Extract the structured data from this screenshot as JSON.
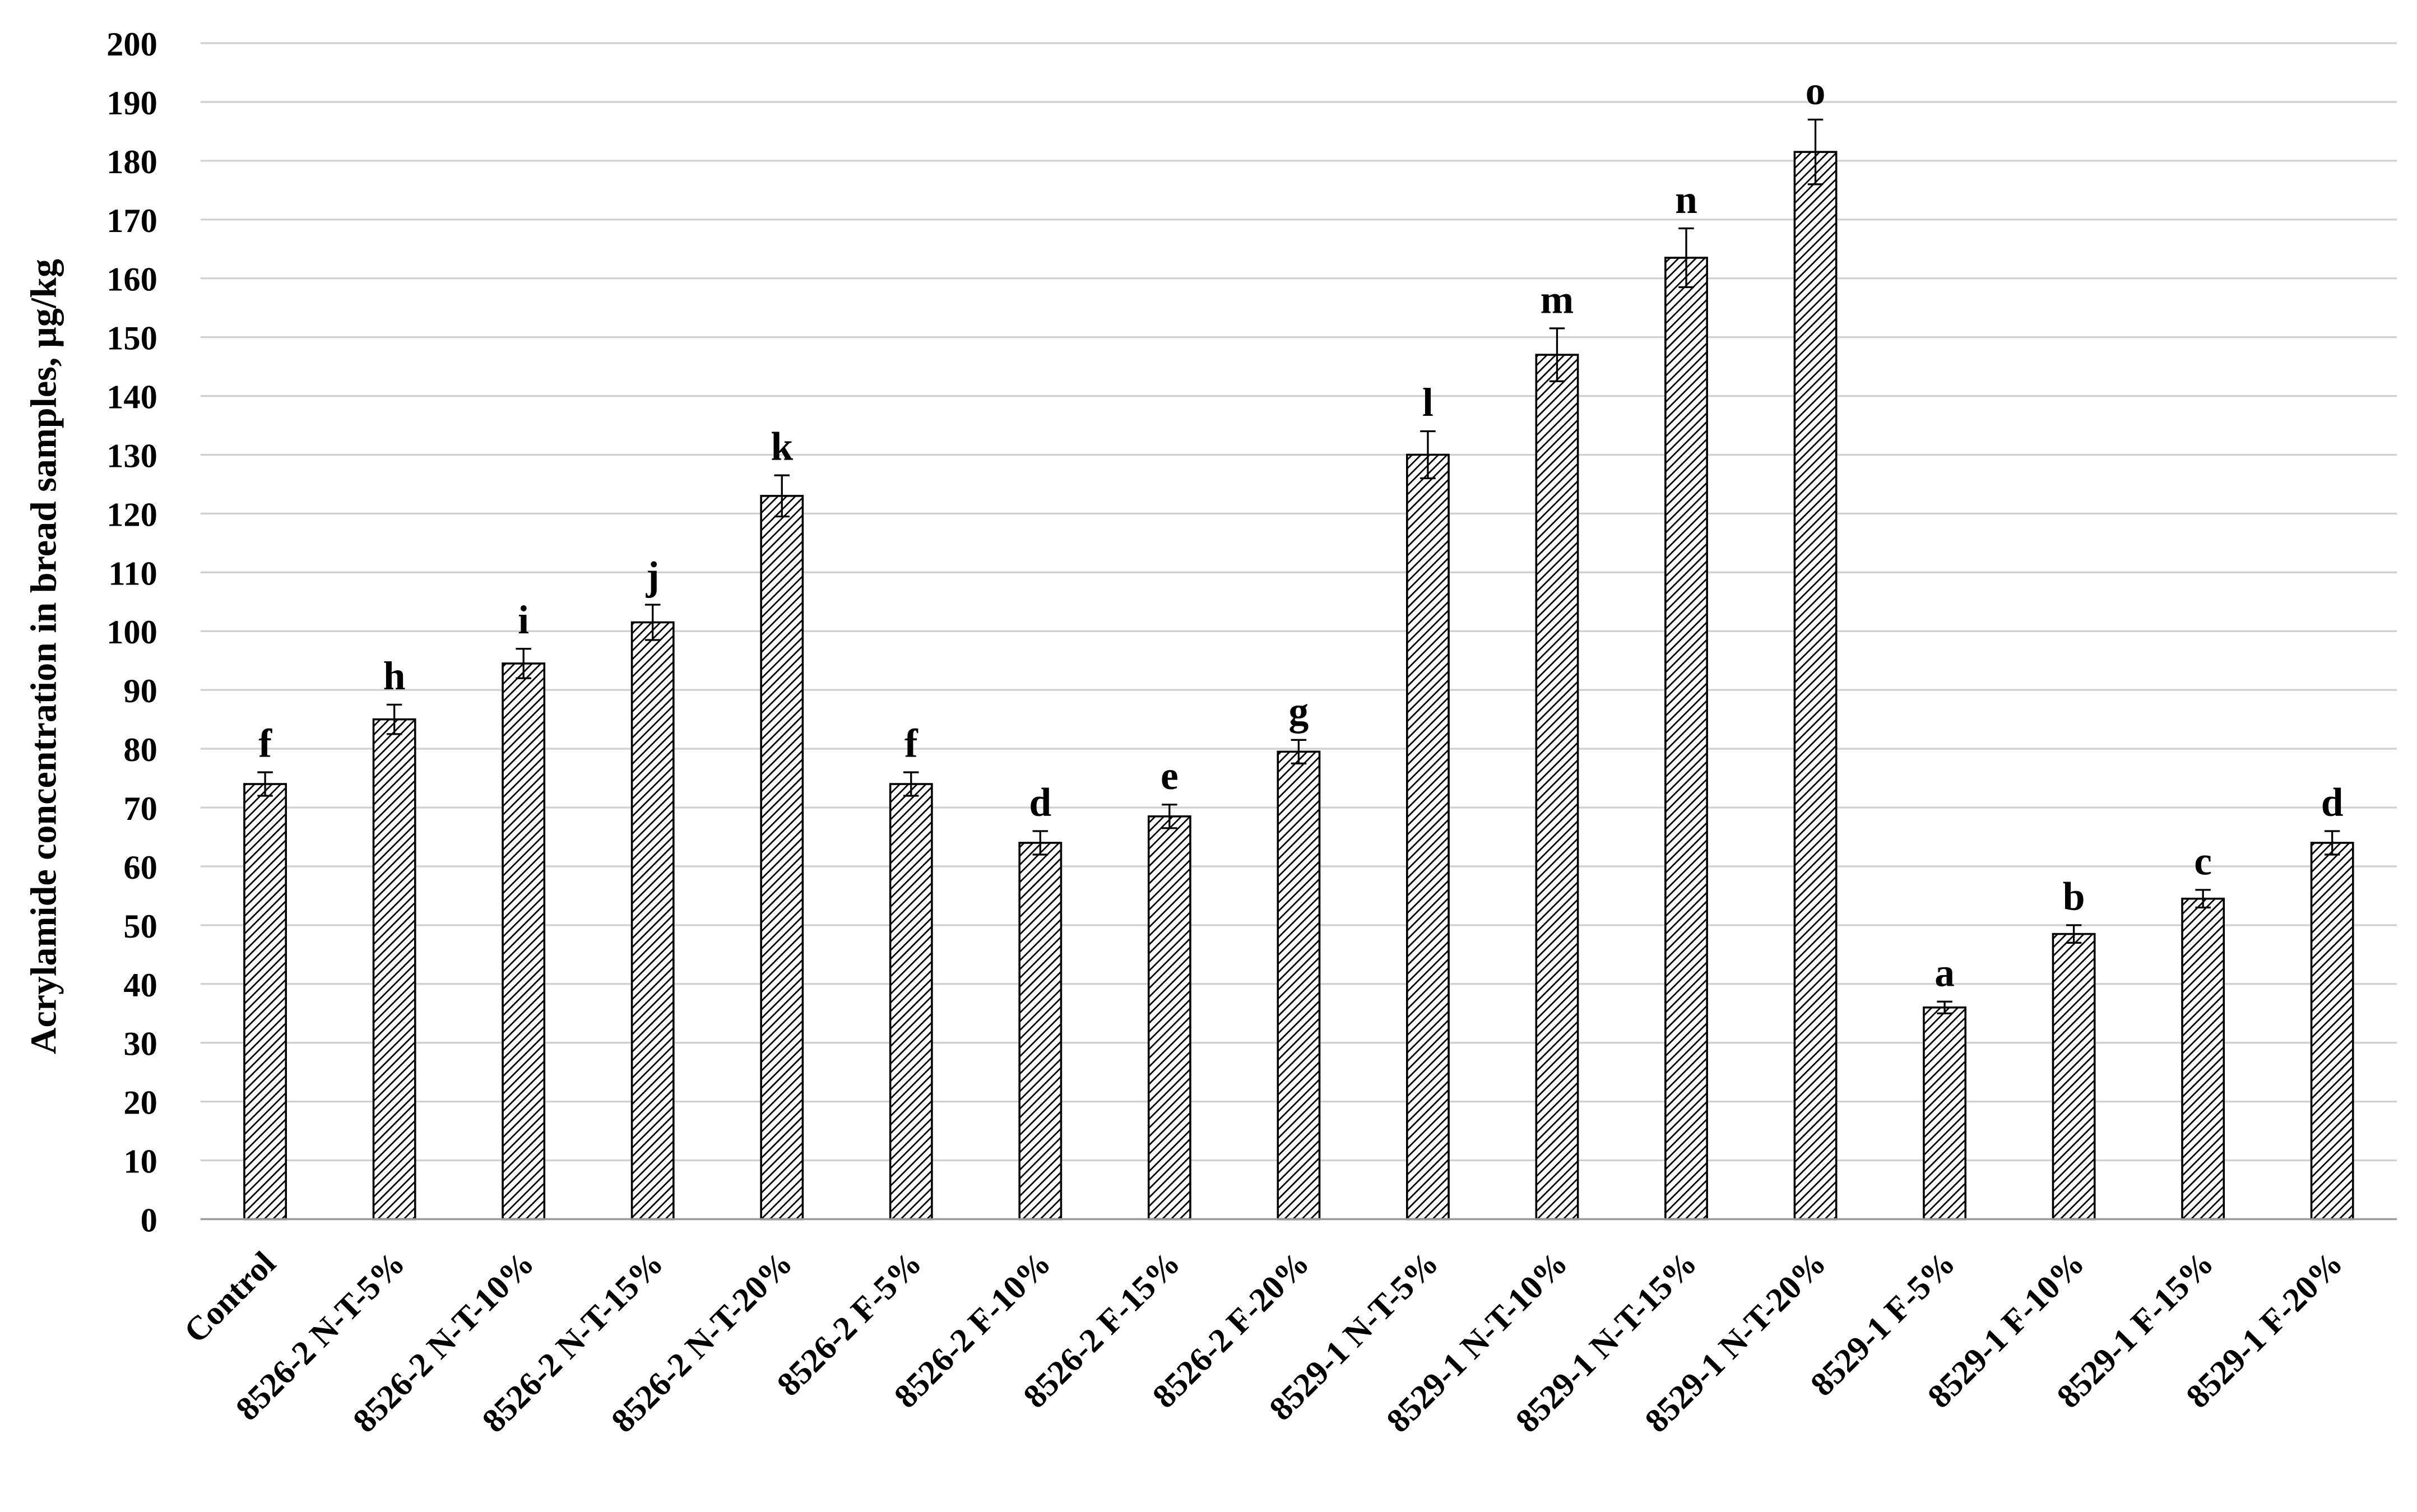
{
  "chart_data": {
    "type": "bar",
    "y_label": "Acrylamide concentration in bread samples, µg/kg",
    "categories": [
      "Control",
      "8526-2 N-T-5%",
      "8526-2 N-T-10%",
      "8526-2 N-T-15%",
      "8526-2 N-T-20%",
      "8526-2 F-5%",
      "8526-2 F-10%",
      "8526-2 F-15%",
      "8526-2 F-20%",
      "8529-1 N-T-5%",
      "8529-1 N-T-10%",
      "8529-1 N-T-15%",
      "8529-1 N-T-20%",
      "8529-1 F-5%",
      "8529-1 F-10%",
      "8529-1 F-15%",
      "8529-1 F-20%"
    ],
    "values": [
      74,
      85,
      94.5,
      101.5,
      123,
      74,
      64,
      68.5,
      79.5,
      130,
      147,
      163.5,
      181.5,
      36,
      48.5,
      54.5,
      64
    ],
    "errors": [
      2,
      2.5,
      2.5,
      3,
      3.5,
      2,
      2,
      2,
      2,
      4,
      4.5,
      5,
      5.5,
      1,
      1.5,
      1.5,
      2
    ],
    "annotations": [
      "f",
      "h",
      "i",
      "j",
      "k",
      "f",
      "d",
      "e",
      "g",
      "l",
      "m",
      "n",
      "o",
      "a",
      "b",
      "c",
      "d"
    ],
    "color": "#000000",
    "ylim": [
      0,
      200
    ],
    "yticks": [
      0,
      10,
      20,
      30,
      40,
      50,
      60,
      70,
      80,
      90,
      100,
      110,
      120,
      130,
      140,
      150,
      160,
      170,
      180,
      190,
      200
    ],
    "grid": true
  }
}
